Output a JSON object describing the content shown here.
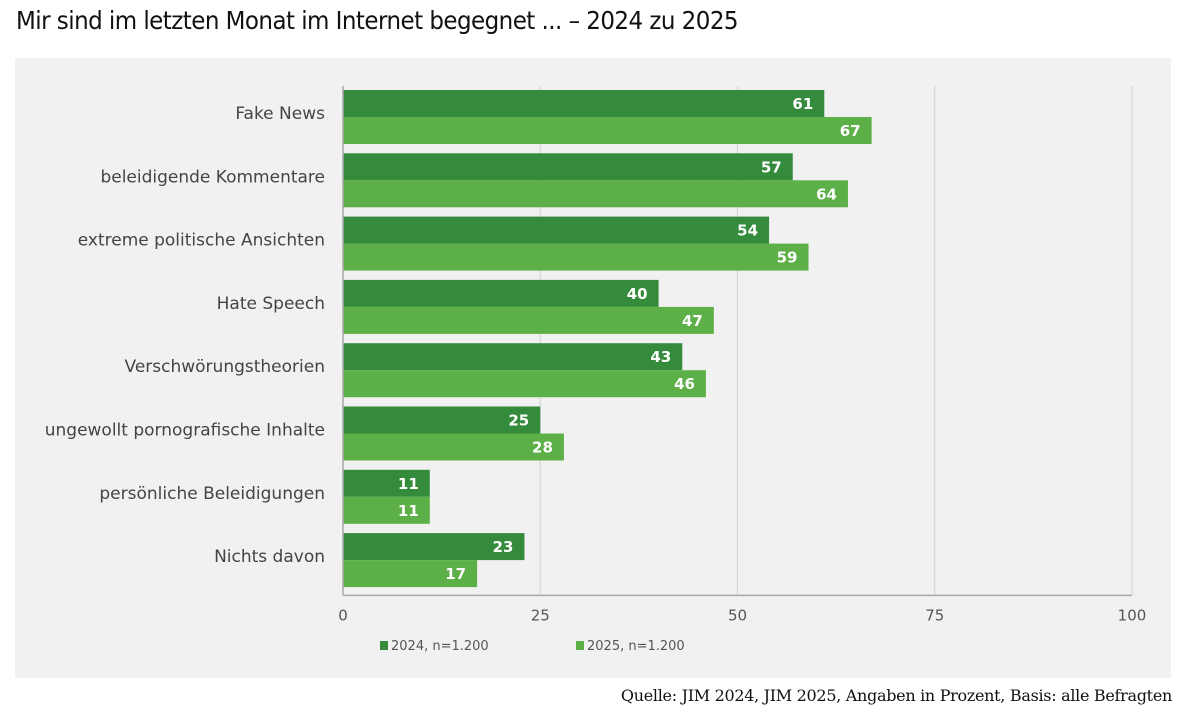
{
  "title": "Mir sind im letzten Monat im Internet begegnet ... – 2024 zu 2025",
  "source": "Quelle: JIM 2024, JIM 2025, Angaben in Prozent, Basis: alle Befragten",
  "chart_data": {
    "type": "bar",
    "orientation": "horizontal",
    "title": "Mir sind im letzten Monat im Internet begegnet ... – 2024 zu 2025",
    "xlabel": "",
    "ylabel": "",
    "xlim": [
      0,
      100
    ],
    "xticks": [
      0,
      25,
      50,
      75,
      100
    ],
    "grid": true,
    "legend_position": "bottom-left",
    "categories": [
      "Fake News",
      "beleidigende Kommentare",
      "extreme politische Ansichten",
      "Hate Speech",
      "Verschwörungstheorien",
      "ungewollt pornografische Inhalte",
      "persönliche Beleidigungen",
      "Nichts davon"
    ],
    "series": [
      {
        "name": "2024, n=1.200",
        "color": "#348b3c",
        "values": [
          61,
          57,
          54,
          40,
          43,
          25,
          11,
          23
        ]
      },
      {
        "name": "2025, n=1.200",
        "color": "#5db048",
        "values": [
          67,
          64,
          59,
          47,
          46,
          28,
          11,
          17
        ]
      }
    ],
    "colors": {
      "grid": "#d6d6d6",
      "axis": "#a8a8a8",
      "label": "#444444",
      "tick": "#555555",
      "value_label": "#ffffff"
    }
  }
}
